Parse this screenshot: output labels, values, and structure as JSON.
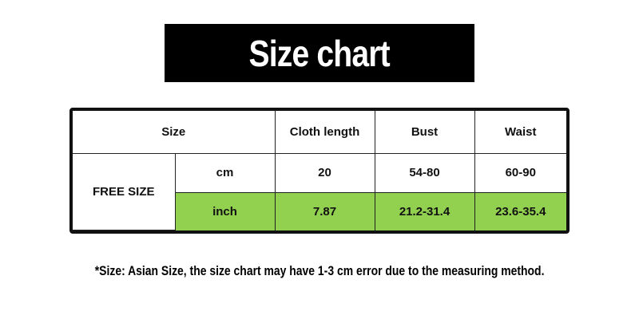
{
  "title": "Size chart",
  "colors": {
    "inch_row_bg": "#92d050",
    "title_bg": "#000000"
  },
  "table": {
    "headers": [
      "Size",
      "Cloth length",
      "Bust",
      "Waist"
    ],
    "size_label": "FREE SIZE",
    "rows": [
      {
        "unit": "cm",
        "values": [
          "20",
          "54-80",
          "60-90"
        ]
      },
      {
        "unit": "inch",
        "values": [
          "7.87",
          "21.2-31.4",
          "23.6-35.4"
        ]
      }
    ]
  },
  "note": "*Size: Asian Size, the size chart may have 1-3 cm error due to the measuring method."
}
